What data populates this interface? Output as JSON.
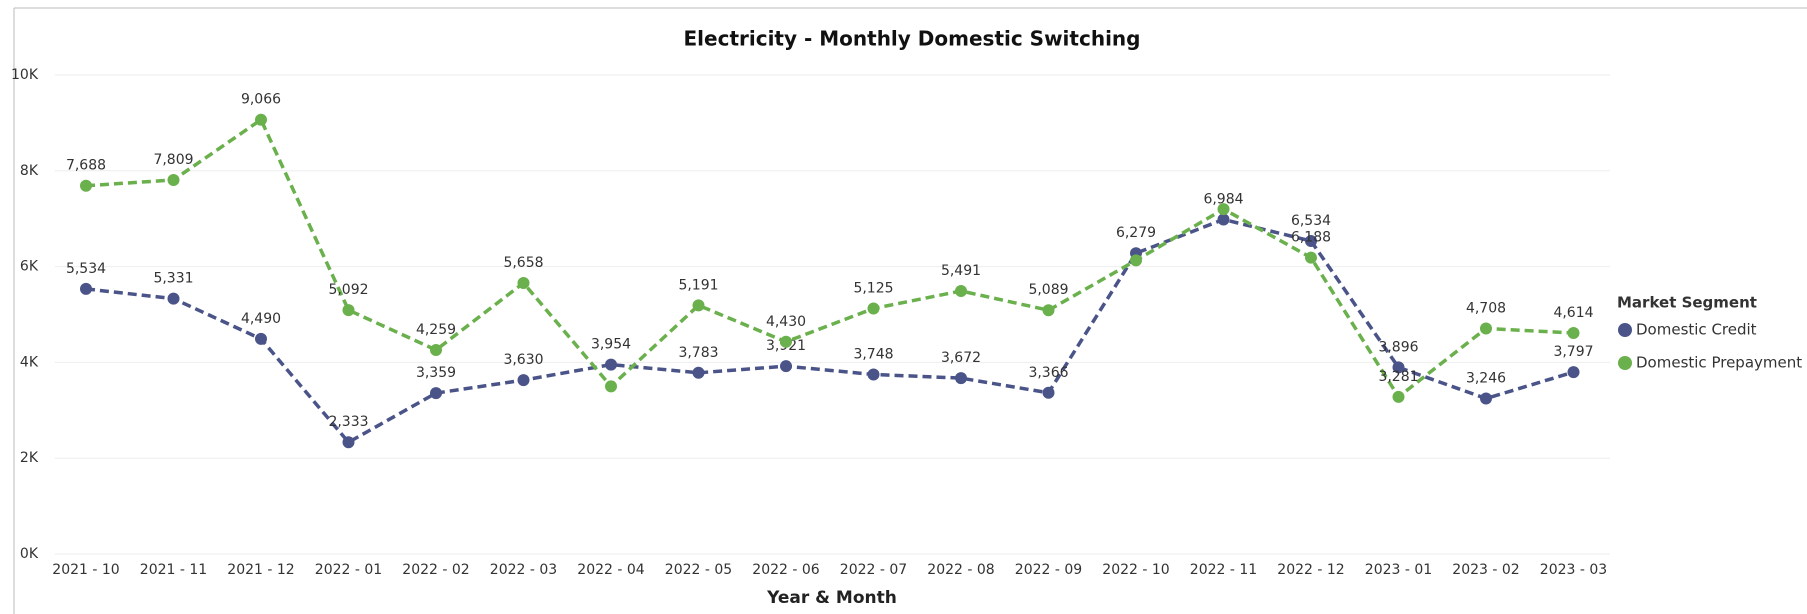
{
  "chart_data": {
    "type": "line",
    "title": "Electricity - Monthly Domestic Switching",
    "x_label": "Year & Month",
    "legend_title": "Market Segment",
    "legend": "right",
    "grid": true,
    "categories": [
      "2021 - 10",
      "2021 - 11",
      "2021 - 12",
      "2022 - 01",
      "2022 - 02",
      "2022 - 03",
      "2022 - 04",
      "2022 - 05",
      "2022 - 06",
      "2022 - 07",
      "2022 - 08",
      "2022 - 09",
      "2022 - 10",
      "2022 - 11",
      "2022 - 12",
      "2023 - 01",
      "2023 - 02",
      "2023 - 03"
    ],
    "ylim": [
      0,
      10000
    ],
    "yticks": [
      {
        "value": 0,
        "label": "0K"
      },
      {
        "value": 2000,
        "label": "2K"
      },
      {
        "value": 4000,
        "label": "4K"
      },
      {
        "value": 6000,
        "label": "6K"
      },
      {
        "value": 8000,
        "label": "8K"
      },
      {
        "value": 10000,
        "label": "10K"
      }
    ],
    "series": [
      {
        "name": "Domestic Credit",
        "color": "#4a5488",
        "values": [
          5534,
          5331,
          4490,
          2333,
          3359,
          3630,
          3954,
          3783,
          3921,
          3748,
          3672,
          3366,
          6279,
          6984,
          6534,
          3896,
          3246,
          3797
        ],
        "value_labels": [
          "5,534",
          "5,331",
          "4,490",
          "2,333",
          "3,359",
          "3,630",
          "3,954",
          "3,783",
          "3,921",
          "3,748",
          "3,672",
          "3,366",
          "6,279",
          "6,984",
          "6,534",
          "3,896",
          "3,246",
          "3,797"
        ]
      },
      {
        "name": "Domestic Prepayment",
        "color": "#6ab04c",
        "values": [
          7688,
          7809,
          9066,
          5092,
          4259,
          5658,
          3500,
          5191,
          4430,
          5125,
          5491,
          5089,
          6130,
          7200,
          6188,
          3281,
          4708,
          4614
        ],
        "value_labels": [
          "7,688",
          "7,809",
          "9,066",
          "5,092",
          "4,259",
          "5,658",
          null,
          "5,191",
          "4,430",
          "5,125",
          "5,491",
          "5,089",
          null,
          null,
          "6,188",
          "3,281",
          "4,708",
          "4,614"
        ]
      }
    ]
  }
}
